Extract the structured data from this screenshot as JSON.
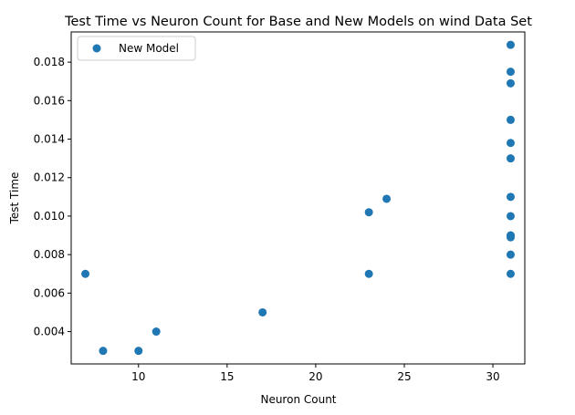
{
  "chart_data": {
    "type": "scatter",
    "title": "Test Time vs Neuron Count for Base and New Models on wind Data Set",
    "xlabel": "Neuron Count",
    "ylabel": "Test Time",
    "xlim": [
      6.2,
      31.8
    ],
    "ylim": [
      0.00232,
      0.01957
    ],
    "xticks": [
      10,
      15,
      20,
      25,
      30
    ],
    "xtick_labels": [
      "10",
      "15",
      "20",
      "25",
      "30"
    ],
    "yticks": [
      0.004,
      0.006,
      0.008,
      0.01,
      0.012,
      0.014,
      0.016,
      0.018
    ],
    "ytick_labels": [
      "0.004",
      "0.006",
      "0.008",
      "0.010",
      "0.012",
      "0.014",
      "0.016",
      "0.018"
    ],
    "grid": false,
    "legend_position": "upper-left",
    "series": [
      {
        "name": "New Model",
        "color": "#1f77b4",
        "x": [
          7,
          8,
          10,
          11,
          17,
          23,
          23,
          24,
          31,
          31,
          31,
          31,
          31,
          31,
          31,
          31,
          31,
          31,
          31,
          31
        ],
        "y": [
          0.007,
          0.003,
          0.003,
          0.004,
          0.005,
          0.007,
          0.0102,
          0.0109,
          0.0189,
          0.0175,
          0.0169,
          0.015,
          0.0138,
          0.013,
          0.011,
          0.01,
          0.009,
          0.0089,
          0.008,
          0.007
        ]
      }
    ]
  }
}
